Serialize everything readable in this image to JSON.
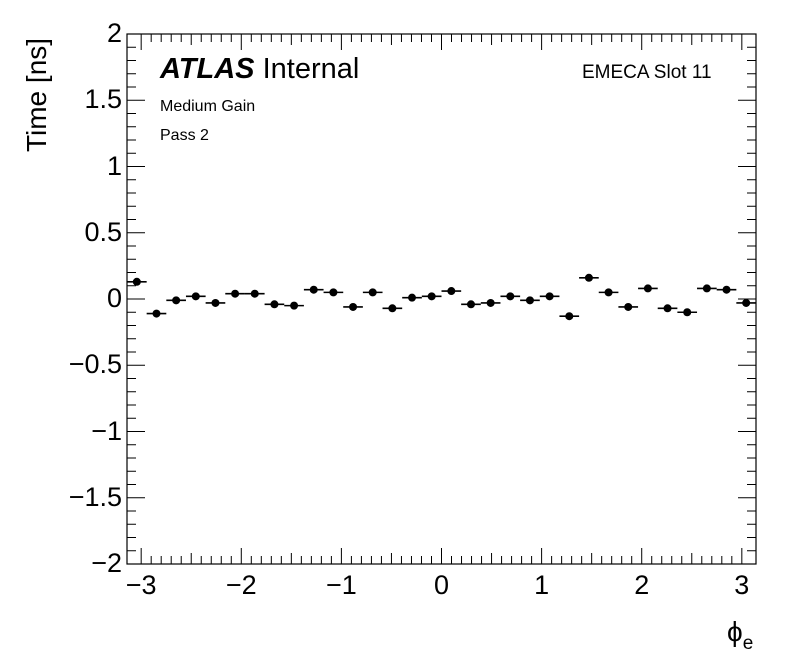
{
  "chart_data": {
    "type": "scatter",
    "title": "",
    "xlabel": "ϕ",
    "xlabel_subscript": "e",
    "ylabel": "Time [ns]",
    "xlim": [
      -3.1416,
      3.1416
    ],
    "ylim": [
      -2,
      2
    ],
    "x_ticks": [
      -3,
      -2,
      -1,
      0,
      1,
      2,
      3
    ],
    "x_tick_labels": [
      "−3",
      "−2",
      "−1",
      "0",
      "1",
      "2",
      "3"
    ],
    "y_ticks": [
      -2,
      -1.5,
      -1,
      -0.5,
      0,
      0.5,
      1,
      1.5,
      2
    ],
    "y_tick_labels": [
      "−2",
      "−1.5",
      "−1",
      "−0.5",
      "0",
      "0.5",
      "1",
      "1.5",
      "2"
    ],
    "grid": false,
    "marker_color": "#000000",
    "series": [
      {
        "x": [
          -3.0434,
          -2.8471,
          -2.6507,
          -2.4544,
          -2.258,
          -2.0617,
          -1.8653,
          -1.669,
          -1.4726,
          -1.2763,
          -1.0799,
          -0.8836,
          -0.6872,
          -0.4909,
          -0.2945,
          -0.0982,
          0.0982,
          0.2945,
          0.4909,
          0.6872,
          0.8836,
          1.0799,
          1.2763,
          1.4726,
          1.669,
          1.8653,
          2.0617,
          2.258,
          2.4544,
          2.6507,
          2.8471,
          3.0434
        ],
        "y": [
          0.13,
          -0.11,
          -0.01,
          0.02,
          -0.03,
          0.04,
          0.04,
          -0.04,
          -0.05,
          0.07,
          0.05,
          -0.06,
          0.05,
          -0.07,
          0.01,
          0.02,
          0.06,
          -0.04,
          -0.03,
          0.02,
          -0.01,
          0.02,
          -0.13,
          0.16,
          0.05,
          -0.06,
          0.08,
          -0.07,
          -0.1,
          0.08,
          0.07,
          -0.03
        ]
      }
    ]
  },
  "annotations": {
    "atlas": "ATLAS",
    "internal": "Internal",
    "slot": "EMECA Slot 11",
    "gain": "Medium Gain",
    "pass": "Pass 2"
  }
}
